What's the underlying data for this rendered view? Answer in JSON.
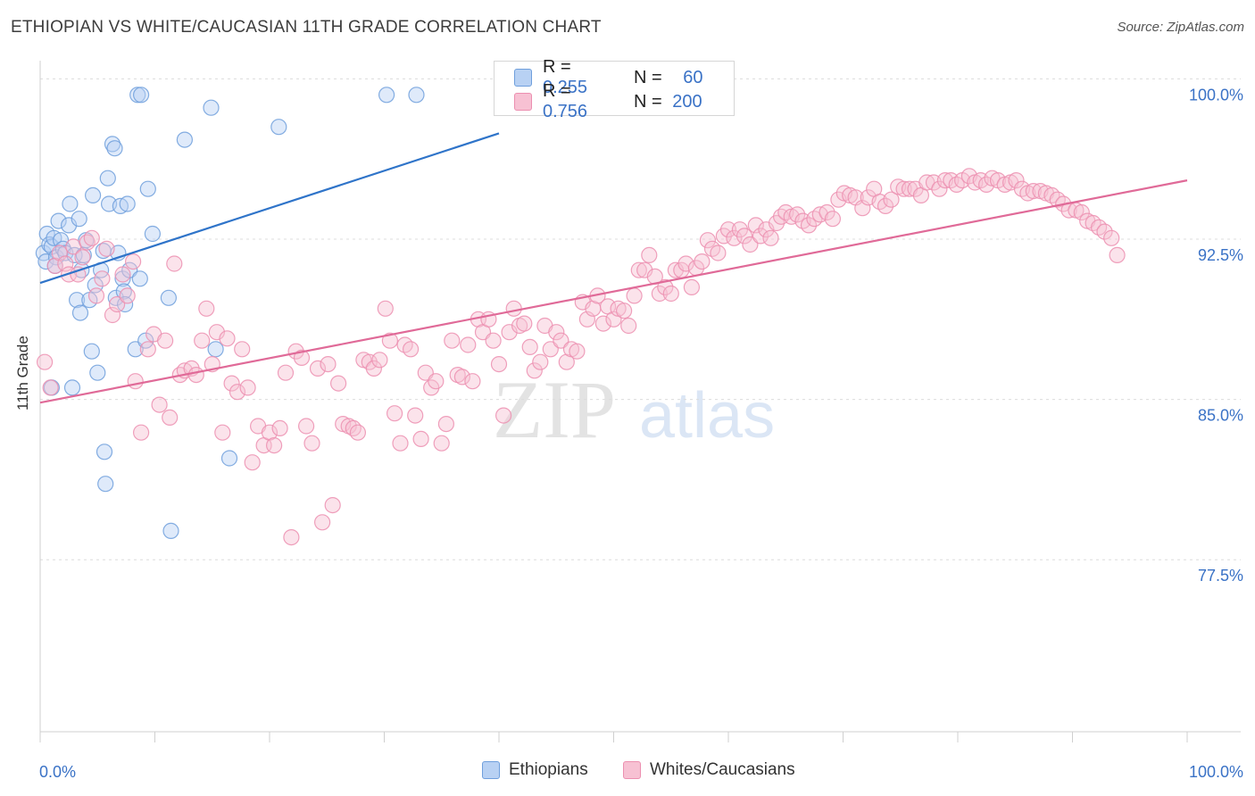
{
  "title": "ETHIOPIAN VS WHITE/CAUCASIAN 11TH GRADE CORRELATION CHART",
  "source": "Source: ZipAtlas.com",
  "watermark": {
    "zip": "ZIP",
    "atlas": "atlas"
  },
  "stats": [
    {
      "r_label": "R =",
      "r_value": "0.255",
      "n_label": "N =",
      "n_value": "60",
      "fill": "#b8d1f3",
      "stroke": "#6f9fdc"
    },
    {
      "r_label": "R =",
      "r_value": "0.756",
      "n_label": "N =",
      "n_value": "200",
      "fill": "#f7c1d3",
      "stroke": "#ec8fb0"
    }
  ],
  "legend": [
    {
      "label": "Ethiopians",
      "fill": "#b8d1f3",
      "stroke": "#6f9fdc"
    },
    {
      "label": "Whites/Caucasians",
      "fill": "#f7c1d3",
      "stroke": "#ec8fb0"
    }
  ],
  "chart_data": {
    "type": "scatter",
    "title": "ETHIOPIAN VS WHITE/CAUCASIAN 11TH GRADE CORRELATION CHART",
    "xlabel": "",
    "ylabel": "11th Grade",
    "xlim": [
      0,
      100
    ],
    "ylim": [
      70.2,
      101.6
    ],
    "x_tick_labels": [
      {
        "value": 0,
        "label": "0.0%"
      },
      {
        "value": 100,
        "label": "100.0%"
      }
    ],
    "y_ticks": [
      {
        "value": 100.0,
        "label": "100.0%"
      },
      {
        "value": 92.5,
        "label": "92.5%"
      },
      {
        "value": 85.0,
        "label": "85.0%"
      },
      {
        "value": 77.5,
        "label": "77.5%"
      }
    ],
    "gridlines": [
      100.75,
      93.25,
      85.75,
      78.25
    ],
    "series": [
      {
        "name": "Ethiopians",
        "color": "#6f9fdc",
        "fill": "#b8d1f3",
        "line_color": "#2f74c9",
        "trend": {
          "x1": 0,
          "y1": 91.2,
          "x2": 40,
          "y2": 98.2
        },
        "points": [
          [
            0.3,
            92.6
          ],
          [
            0.5,
            92.2
          ],
          [
            0.6,
            93.5
          ],
          [
            0.8,
            93.0
          ],
          [
            1.0,
            92.9
          ],
          [
            1.2,
            93.3
          ],
          [
            1.4,
            92.4
          ],
          [
            1.6,
            94.1
          ],
          [
            1.8,
            93.2
          ],
          [
            2.0,
            92.8
          ],
          [
            2.2,
            92.6
          ],
          [
            2.5,
            93.9
          ],
          [
            2.6,
            94.9
          ],
          [
            3.0,
            92.5
          ],
          [
            3.2,
            90.4
          ],
          [
            3.4,
            94.2
          ],
          [
            3.5,
            89.8
          ],
          [
            3.6,
            91.8
          ],
          [
            3.8,
            92.5
          ],
          [
            4.0,
            93.2
          ],
          [
            4.3,
            90.4
          ],
          [
            4.5,
            88.0
          ],
          [
            4.6,
            95.3
          ],
          [
            4.8,
            91.1
          ],
          [
            5.0,
            87.0
          ],
          [
            5.3,
            91.8
          ],
          [
            5.5,
            92.7
          ],
          [
            5.6,
            83.3
          ],
          [
            5.7,
            81.8
          ],
          [
            5.9,
            96.1
          ],
          [
            6.0,
            94.9
          ],
          [
            6.3,
            97.7
          ],
          [
            6.5,
            97.5
          ],
          [
            6.6,
            90.5
          ],
          [
            6.8,
            92.6
          ],
          [
            7.0,
            94.8
          ],
          [
            7.2,
            91.4
          ],
          [
            7.3,
            90.8
          ],
          [
            7.4,
            90.2
          ],
          [
            7.6,
            94.9
          ],
          [
            7.8,
            91.8
          ],
          [
            8.3,
            88.1
          ],
          [
            8.5,
            100.0
          ],
          [
            8.7,
            91.4
          ],
          [
            8.8,
            100.0
          ],
          [
            9.2,
            88.5
          ],
          [
            9.4,
            95.6
          ],
          [
            9.8,
            93.5
          ],
          [
            11.2,
            90.5
          ],
          [
            11.4,
            79.6
          ],
          [
            12.6,
            97.9
          ],
          [
            14.9,
            99.4
          ],
          [
            15.3,
            88.1
          ],
          [
            16.5,
            83.0
          ],
          [
            20.8,
            98.5
          ],
          [
            30.2,
            100.0
          ],
          [
            32.8,
            100.0
          ],
          [
            1.0,
            86.3
          ],
          [
            2.8,
            86.3
          ],
          [
            1.3,
            92.0
          ]
        ]
      },
      {
        "name": "Whites/Caucasians",
        "color": "#ec8fb0",
        "fill": "#f7c1d3",
        "line_color": "#e06a98",
        "trend": {
          "x1": 0,
          "y1": 85.6,
          "x2": 100,
          "y2": 96.0
        },
        "points": [
          [
            0.4,
            87.5
          ],
          [
            0.9,
            86.3
          ],
          [
            1.3,
            92.0
          ],
          [
            1.7,
            92.6
          ],
          [
            2.2,
            92.1
          ],
          [
            2.5,
            91.6
          ],
          [
            2.9,
            92.9
          ],
          [
            3.3,
            91.6
          ],
          [
            3.7,
            92.4
          ],
          [
            4.1,
            93.1
          ],
          [
            4.5,
            93.3
          ],
          [
            4.9,
            90.6
          ],
          [
            5.4,
            91.4
          ],
          [
            5.8,
            92.8
          ],
          [
            6.3,
            89.7
          ],
          [
            6.7,
            90.2
          ],
          [
            7.2,
            91.6
          ],
          [
            7.6,
            90.6
          ],
          [
            8.1,
            92.2
          ],
          [
            8.3,
            86.6
          ],
          [
            8.8,
            84.2
          ],
          [
            9.4,
            88.1
          ],
          [
            9.9,
            88.8
          ],
          [
            10.4,
            85.5
          ],
          [
            10.9,
            88.5
          ],
          [
            11.3,
            84.9
          ],
          [
            11.7,
            92.1
          ],
          [
            12.2,
            86.9
          ],
          [
            12.6,
            87.1
          ],
          [
            13.2,
            87.2
          ],
          [
            13.6,
            86.9
          ],
          [
            14.1,
            88.5
          ],
          [
            14.5,
            90.0
          ],
          [
            15.0,
            87.4
          ],
          [
            15.4,
            88.9
          ],
          [
            15.9,
            84.2
          ],
          [
            16.3,
            88.6
          ],
          [
            16.7,
            86.5
          ],
          [
            17.2,
            86.1
          ],
          [
            17.6,
            88.1
          ],
          [
            18.1,
            86.3
          ],
          [
            18.5,
            82.8
          ],
          [
            19.0,
            84.5
          ],
          [
            19.5,
            83.6
          ],
          [
            20.0,
            84.2
          ],
          [
            20.4,
            83.6
          ],
          [
            20.9,
            84.4
          ],
          [
            21.4,
            87.0
          ],
          [
            21.9,
            79.3
          ],
          [
            22.3,
            88.0
          ],
          [
            22.8,
            87.7
          ],
          [
            23.2,
            84.5
          ],
          [
            23.7,
            83.7
          ],
          [
            24.2,
            87.2
          ],
          [
            24.6,
            80.0
          ],
          [
            25.1,
            87.4
          ],
          [
            25.5,
            80.8
          ],
          [
            26.0,
            86.5
          ],
          [
            26.4,
            84.6
          ],
          [
            26.9,
            84.5
          ],
          [
            27.3,
            84.4
          ],
          [
            27.7,
            84.2
          ],
          [
            28.2,
            87.6
          ],
          [
            28.7,
            87.5
          ],
          [
            29.1,
            87.2
          ],
          [
            29.6,
            87.6
          ],
          [
            30.1,
            90.0
          ],
          [
            30.5,
            88.5
          ],
          [
            30.9,
            85.1
          ],
          [
            31.4,
            83.7
          ],
          [
            31.8,
            88.3
          ],
          [
            32.3,
            88.1
          ],
          [
            32.7,
            85.0
          ],
          [
            33.2,
            83.9
          ],
          [
            33.6,
            87.0
          ],
          [
            34.1,
            86.3
          ],
          [
            34.5,
            86.6
          ],
          [
            35.0,
            83.7
          ],
          [
            35.4,
            84.6
          ],
          [
            35.9,
            88.5
          ],
          [
            36.4,
            86.9
          ],
          [
            36.8,
            86.8
          ],
          [
            37.3,
            88.3
          ],
          [
            37.7,
            86.6
          ],
          [
            38.2,
            89.5
          ],
          [
            38.6,
            88.9
          ],
          [
            39.1,
            89.5
          ],
          [
            39.5,
            88.5
          ],
          [
            40.0,
            87.4
          ],
          [
            40.4,
            85.0
          ],
          [
            40.9,
            88.9
          ],
          [
            41.3,
            90.0
          ],
          [
            41.8,
            89.2
          ],
          [
            42.2,
            89.3
          ],
          [
            42.7,
            88.2
          ],
          [
            43.1,
            87.1
          ],
          [
            43.6,
            87.5
          ],
          [
            44.0,
            89.2
          ],
          [
            44.5,
            88.1
          ],
          [
            45.0,
            88.9
          ],
          [
            45.4,
            88.5
          ],
          [
            45.9,
            87.5
          ],
          [
            46.3,
            88.1
          ],
          [
            46.8,
            88.0
          ],
          [
            47.3,
            90.3
          ],
          [
            47.7,
            89.5
          ],
          [
            48.2,
            90.0
          ],
          [
            48.6,
            90.6
          ],
          [
            49.1,
            89.3
          ],
          [
            49.5,
            90.1
          ],
          [
            50.0,
            89.5
          ],
          [
            50.4,
            90.0
          ],
          [
            50.9,
            89.9
          ],
          [
            51.3,
            89.2
          ],
          [
            51.8,
            90.6
          ],
          [
            52.2,
            91.8
          ],
          [
            52.7,
            91.8
          ],
          [
            53.1,
            92.5
          ],
          [
            53.6,
            91.5
          ],
          [
            54.0,
            90.7
          ],
          [
            54.5,
            91.0
          ],
          [
            55.0,
            90.7
          ],
          [
            55.4,
            91.8
          ],
          [
            55.9,
            91.8
          ],
          [
            56.3,
            92.1
          ],
          [
            56.8,
            91.0
          ],
          [
            57.2,
            91.9
          ],
          [
            57.7,
            92.2
          ],
          [
            58.2,
            93.2
          ],
          [
            58.6,
            92.8
          ],
          [
            59.1,
            92.6
          ],
          [
            59.6,
            93.4
          ],
          [
            60.0,
            93.7
          ],
          [
            60.5,
            93.3
          ],
          [
            61.0,
            93.7
          ],
          [
            61.4,
            93.4
          ],
          [
            61.9,
            93.0
          ],
          [
            62.4,
            93.9
          ],
          [
            62.8,
            93.4
          ],
          [
            63.3,
            93.7
          ],
          [
            63.7,
            93.3
          ],
          [
            64.2,
            94.0
          ],
          [
            64.6,
            94.3
          ],
          [
            65.0,
            94.5
          ],
          [
            65.5,
            94.3
          ],
          [
            66.0,
            94.4
          ],
          [
            66.5,
            94.1
          ],
          [
            67.0,
            93.9
          ],
          [
            67.5,
            94.2
          ],
          [
            68.0,
            94.4
          ],
          [
            68.6,
            94.5
          ],
          [
            69.1,
            94.2
          ],
          [
            69.6,
            95.1
          ],
          [
            70.1,
            95.4
          ],
          [
            70.6,
            95.3
          ],
          [
            71.1,
            95.2
          ],
          [
            71.7,
            94.7
          ],
          [
            72.2,
            95.2
          ],
          [
            72.7,
            95.6
          ],
          [
            73.2,
            95.0
          ],
          [
            73.7,
            94.8
          ],
          [
            74.2,
            95.1
          ],
          [
            74.8,
            95.7
          ],
          [
            75.3,
            95.6
          ],
          [
            75.8,
            95.6
          ],
          [
            76.3,
            95.6
          ],
          [
            76.8,
            95.3
          ],
          [
            77.3,
            95.9
          ],
          [
            77.9,
            95.9
          ],
          [
            78.4,
            95.6
          ],
          [
            78.9,
            96.0
          ],
          [
            79.4,
            96.0
          ],
          [
            79.9,
            95.8
          ],
          [
            80.4,
            96.0
          ],
          [
            81.0,
            96.2
          ],
          [
            81.5,
            95.9
          ],
          [
            82.0,
            96.0
          ],
          [
            82.5,
            95.8
          ],
          [
            83.0,
            96.1
          ],
          [
            83.5,
            96.0
          ],
          [
            84.1,
            95.8
          ],
          [
            84.6,
            95.9
          ],
          [
            85.1,
            96.0
          ],
          [
            85.6,
            95.6
          ],
          [
            86.1,
            95.4
          ],
          [
            86.6,
            95.5
          ],
          [
            87.2,
            95.5
          ],
          [
            87.7,
            95.4
          ],
          [
            88.2,
            95.3
          ],
          [
            88.7,
            95.1
          ],
          [
            89.2,
            94.9
          ],
          [
            89.7,
            94.6
          ],
          [
            90.3,
            94.6
          ],
          [
            90.8,
            94.5
          ],
          [
            91.3,
            94.1
          ],
          [
            91.8,
            94.0
          ],
          [
            92.3,
            93.8
          ],
          [
            92.8,
            93.6
          ],
          [
            93.4,
            93.3
          ],
          [
            93.9,
            92.5
          ]
        ]
      }
    ]
  }
}
